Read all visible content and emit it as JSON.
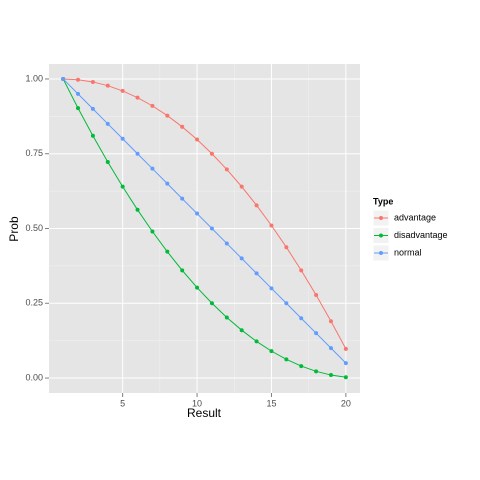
{
  "chart_data": {
    "type": "line",
    "x_label": "Result",
    "y_label": "Prob",
    "legend_title": "Type",
    "legend_position": "right",
    "x": [
      1,
      2,
      3,
      4,
      5,
      6,
      7,
      8,
      9,
      10,
      11,
      12,
      13,
      14,
      15,
      16,
      17,
      18,
      19,
      20
    ],
    "series": [
      {
        "name": "advantage",
        "color": "#F8766D",
        "values": [
          1,
          0.9975,
          0.99,
          0.9775,
          0.96,
          0.9375,
          0.91,
          0.8775,
          0.84,
          0.7975,
          0.75,
          0.6975,
          0.64,
          0.5775,
          0.51,
          0.4375,
          0.36,
          0.2775,
          0.19,
          0.0975
        ]
      },
      {
        "name": "disadvantage",
        "color": "#00BA38",
        "values": [
          1,
          0.9025,
          0.81,
          0.7225,
          0.64,
          0.5625,
          0.49,
          0.4225,
          0.36,
          0.3025,
          0.25,
          0.2025,
          0.16,
          0.1225,
          0.09,
          0.0625,
          0.04,
          0.0225,
          0.01,
          0.0025
        ]
      },
      {
        "name": "normal",
        "color": "#619CFF",
        "values": [
          1,
          0.95,
          0.9,
          0.85,
          0.8,
          0.75,
          0.7,
          0.65,
          0.6,
          0.55,
          0.5,
          0.45,
          0.4,
          0.35,
          0.3,
          0.25,
          0.2,
          0.15,
          0.1,
          0.05
        ]
      }
    ],
    "xlim": [
      0.05,
      20.95
    ],
    "xticks": [
      5,
      10,
      15,
      20
    ],
    "ylim": [
      -0.05,
      1.05
    ],
    "yticks": [
      {
        "value": 0,
        "label": "0.00"
      },
      {
        "value": 0.25,
        "label": "0.25"
      },
      {
        "value": 0.5,
        "label": "0.50"
      },
      {
        "value": 0.75,
        "label": "0.75"
      },
      {
        "value": 1,
        "label": "1.00"
      }
    ],
    "grid": true,
    "minor_grid": true,
    "panel_color": "#E5E5E5"
  }
}
